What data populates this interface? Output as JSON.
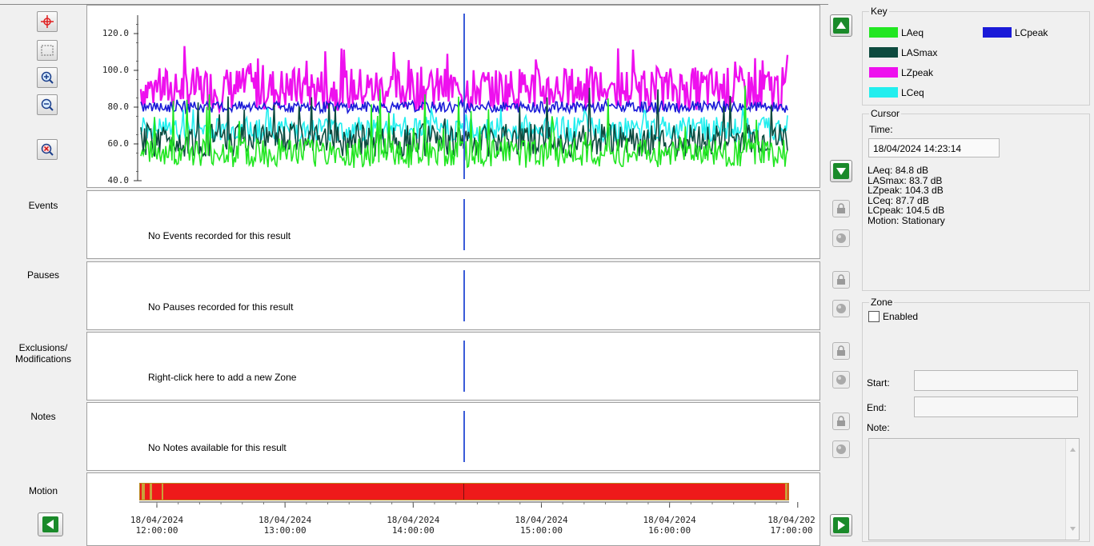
{
  "left_labels": {
    "events": "Events",
    "pauses": "Pauses",
    "exclusions": "Exclusions/\nModifications",
    "notes": "Notes",
    "motion": "Motion"
  },
  "panels": {
    "events_msg": "No Events recorded for this result",
    "pauses_msg": "No Pauses recorded for this result",
    "exclusions_msg": "Right-click here to add a new Zone",
    "notes_msg": "No Notes available for this result"
  },
  "key": {
    "title": "Key",
    "items": [
      {
        "label": "LAeq",
        "color": "#22e622"
      },
      {
        "label": "LASmax",
        "color": "#0d4a3e"
      },
      {
        "label": "LZpeak",
        "color": "#ee10ee"
      },
      {
        "label": "LCeq",
        "color": "#22eeee"
      },
      {
        "label": "LCpeak",
        "color": "#1a1ad8"
      }
    ]
  },
  "cursor": {
    "title": "Cursor",
    "time_label": "Time:",
    "time_value": "18/04/2024 14:23:14",
    "readout": [
      "LAeq:   84.8 dB",
      "LASmax:   83.7 dB",
      "LZpeak:   104.3 dB",
      "LCeq:   87.7 dB",
      "LCpeak:   104.5 dB",
      "Motion:   Stationary"
    ]
  },
  "zone": {
    "title": "Zone",
    "enabled_label": "Enabled",
    "enabled": false,
    "start_label": "Start:",
    "end_label": "End:",
    "note_label": "Note:",
    "start_value": "",
    "end_value": "",
    "note_value": ""
  },
  "icons": {
    "crosshair": "crosshair-icon",
    "select": "select-rectangle-icon",
    "zoom_in": "zoom-in-icon",
    "zoom_out": "zoom-out-icon",
    "zoom_reset": "zoom-reset-icon",
    "scroll_left": "arrow-left-icon",
    "scroll_right": "arrow-right-icon",
    "scroll_up": "arrow-up-icon",
    "scroll_down": "arrow-down-icon",
    "lock": "lock-icon",
    "color": "color-picker-icon"
  },
  "chart_data": {
    "type": "line",
    "y_ticks": [
      "120.0",
      "100.0",
      "80.0",
      "60.0",
      "40.0"
    ],
    "ylim": [
      40,
      130
    ],
    "x_ticks": [
      "18/04/2024\n12:00:00",
      "18/04/2024\n13:00:00",
      "18/04/2024\n14:00:00",
      "18/04/2024\n15:00:00",
      "18/04/2024\n16:00:00",
      "18/04/202\n17:00:00"
    ],
    "x_start": "11:51",
    "x_end": "16:55",
    "cursor_time": "14:23:14",
    "series": [
      {
        "name": "LZpeak",
        "color": "#ee10ee",
        "base": 90,
        "spread": 12,
        "peak": 115
      },
      {
        "name": "LCpeak",
        "color": "#1a1ad8",
        "base": 80,
        "spread": 3,
        "peak": 84
      },
      {
        "name": "LCeq",
        "color": "#22eeee",
        "base": 68,
        "spread": 7,
        "peak": 80
      },
      {
        "name": "LASmax",
        "color": "#0d4a3e",
        "base": 62,
        "spread": 9,
        "peak": 95
      },
      {
        "name": "LAeq",
        "color": "#22e622",
        "base": 55,
        "spread": 8,
        "peak": 92
      }
    ],
    "grid": false
  }
}
